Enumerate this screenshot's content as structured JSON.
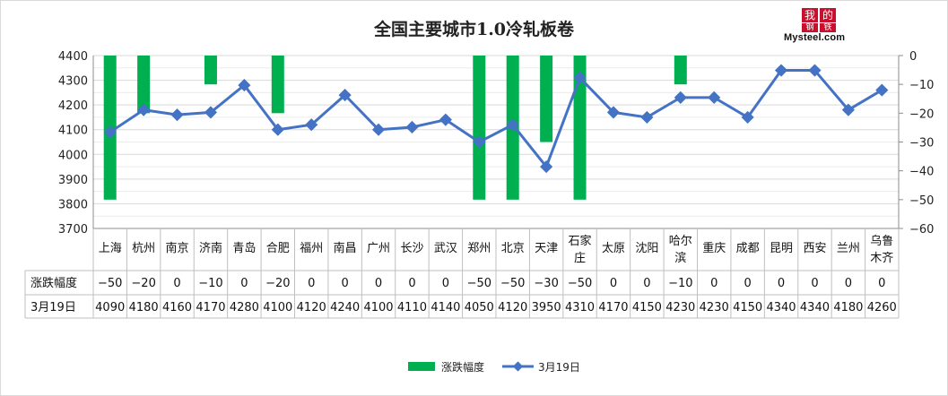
{
  "chart_data": {
    "type": "bar+line",
    "title": "全国主要城市1.0冷轧板卷",
    "categories": [
      [
        "上海"
      ],
      [
        "杭州"
      ],
      [
        "南京"
      ],
      [
        "济南"
      ],
      [
        "青岛"
      ],
      [
        "合肥"
      ],
      [
        "福州"
      ],
      [
        "南昌"
      ],
      [
        "广州"
      ],
      [
        "长沙"
      ],
      [
        "武汉"
      ],
      [
        "郑州"
      ],
      [
        "北京"
      ],
      [
        "天津"
      ],
      [
        "石家",
        "庄"
      ],
      [
        "太原"
      ],
      [
        "沈阳"
      ],
      [
        "哈尔",
        "滨"
      ],
      [
        "重庆"
      ],
      [
        "成都"
      ],
      [
        "昆明"
      ],
      [
        "西安"
      ],
      [
        "兰州"
      ],
      [
        "乌鲁",
        "木齐"
      ]
    ],
    "series": [
      {
        "name": "涨跌幅度",
        "type": "bar",
        "axis": "right",
        "color": "#00b050",
        "values": [
          -50,
          -20,
          0,
          -10,
          0,
          -20,
          0,
          0,
          0,
          0,
          0,
          -50,
          -50,
          -30,
          -50,
          0,
          0,
          -10,
          0,
          0,
          0,
          0,
          0,
          0
        ],
        "labels": [
          "-50",
          "-20",
          "0",
          "-10",
          "0",
          "-20",
          "0",
          "0",
          "0",
          "0",
          "0",
          "-50",
          "-50",
          "-30",
          "-50",
          "0",
          "0",
          "-10",
          "0",
          "0",
          "0",
          "0",
          "0",
          "0"
        ]
      },
      {
        "name": "3月19日",
        "type": "line",
        "axis": "left",
        "color": "#4472c4",
        "values": [
          4090,
          4180,
          4160,
          4170,
          4280,
          4100,
          4120,
          4240,
          4100,
          4110,
          4140,
          4050,
          4120,
          3950,
          4310,
          4170,
          4150,
          4230,
          4230,
          4150,
          4340,
          4340,
          4180,
          4260
        ]
      }
    ],
    "y_left": {
      "min": 3700,
      "max": 4400,
      "step": 100,
      "ticks": [
        "4400",
        "4300",
        "4200",
        "4100",
        "4000",
        "3900",
        "3800",
        "3700"
      ]
    },
    "y_right": {
      "min": -60,
      "max": 0,
      "step": 10,
      "ticks": [
        "0",
        "-10",
        "-20",
        "-30",
        "-40",
        "-50",
        "-60"
      ]
    },
    "legend": {
      "position": "bottom"
    },
    "data_table": true,
    "grid": true
  },
  "logo": {
    "char1": "我",
    "char2": "的",
    "char3": "钢",
    "char4": "铁",
    "word": "Mysteel.com"
  }
}
